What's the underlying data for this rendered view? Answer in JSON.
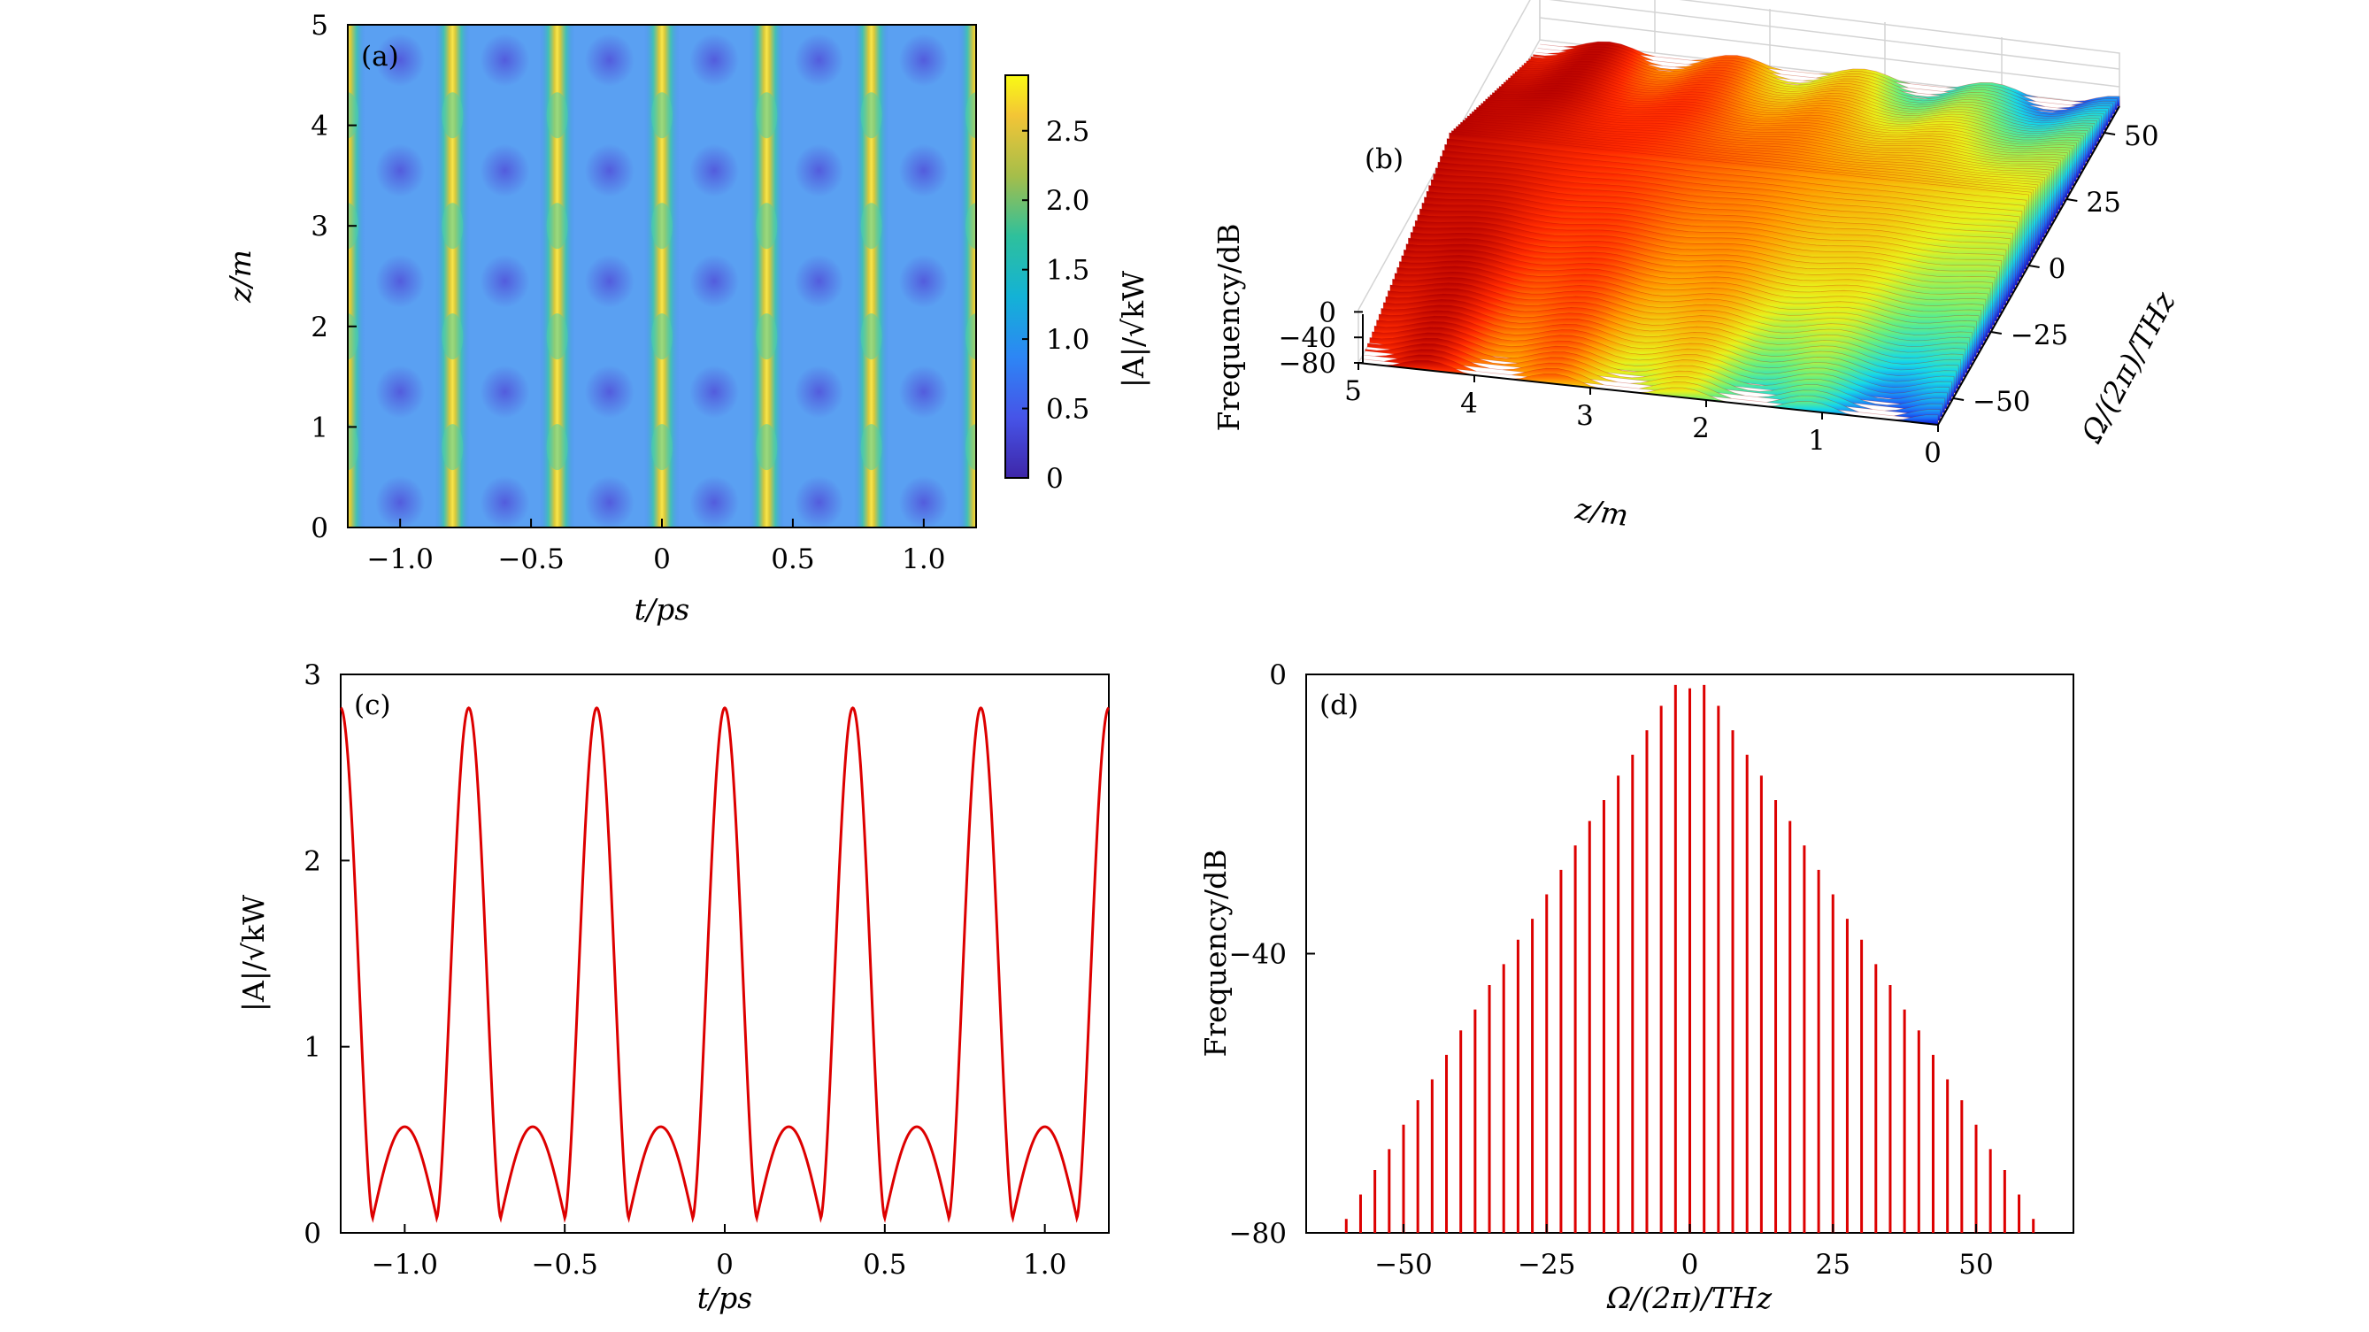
{
  "colors": {
    "line": "#dd0000",
    "axis": "#000000",
    "bg": "#ffffff"
  },
  "chart_data": [
    {
      "panel": "(a)",
      "type": "heatmap",
      "title": "",
      "xlabel": "t/ps",
      "ylabel": "z/m",
      "xlim": [
        -1.2,
        1.2
      ],
      "ylim": [
        0,
        5
      ],
      "x_ticks": [
        "−1.0",
        "−0.5",
        "0",
        "0.5",
        "1.0"
      ],
      "x_tick_values": [
        -1.0,
        -0.5,
        0,
        0.5,
        1.0
      ],
      "y_ticks": [
        "0",
        "1",
        "2",
        "3",
        "4",
        "5"
      ],
      "y_tick_values": [
        0,
        1,
        2,
        3,
        4,
        5
      ],
      "colorbar_label": "|A|/√kW",
      "colorbar_range": [
        0,
        2.9
      ],
      "colorbar_ticks": [
        "0",
        "0.5",
        "1.0",
        "1.5",
        "2.0",
        "2.5"
      ],
      "colorbar_tick_values": [
        0,
        0.5,
        1.0,
        1.5,
        2.0,
        2.5
      ],
      "pulse_centers_ps": [
        -1.2,
        -0.8,
        -0.4,
        0,
        0.4,
        0.8,
        1.2
      ],
      "peak_amplitude": 2.82,
      "min_amplitude": 0.08,
      "z_period_m": 1.1
    },
    {
      "panel": "(b)",
      "type": "surface3d",
      "xlabel": "z/m",
      "ylabel": "Ω/(2π)/THz",
      "zlabel": "Frequency/dB",
      "x_ticks": [
        "5",
        "4",
        "3",
        "2",
        "1",
        "0"
      ],
      "x_tick_values": [
        5,
        4,
        3,
        2,
        1,
        0
      ],
      "y_ticks": [
        "50",
        "25",
        "0",
        "−25",
        "−50"
      ],
      "y_tick_values": [
        50,
        25,
        0,
        -25,
        -50
      ],
      "z_ticks": [
        "0",
        "−40",
        "−80"
      ],
      "z_tick_values": [
        0,
        -40,
        -80
      ],
      "xlim": [
        0,
        5
      ],
      "ylim": [
        -60,
        60
      ],
      "zlim": [
        -80,
        0
      ]
    },
    {
      "panel": "(c)",
      "type": "line",
      "xlabel": "t/ps",
      "ylabel": "|A|/√kW",
      "xlim": [
        -1.2,
        1.2
      ],
      "ylim": [
        0,
        3
      ],
      "x_ticks": [
        "−1.0",
        "−0.5",
        "0",
        "0.5",
        "1.0"
      ],
      "x_tick_values": [
        -1.0,
        -0.5,
        0,
        0.5,
        1.0
      ],
      "y_ticks": [
        "0",
        "1",
        "2",
        "3"
      ],
      "y_tick_values": [
        0,
        1,
        2,
        3
      ],
      "series": [
        {
          "name": "|A|",
          "period_ps": 0.4,
          "peaks": {
            "t": [
              -1.2,
              -0.8,
              -0.4,
              0,
              0.4,
              0.8,
              1.2
            ],
            "value": 2.82
          },
          "secondary_maxima": {
            "t": [
              -1.0,
              -0.6,
              -0.2,
              0.2,
              0.6,
              1.0
            ],
            "value": 0.57
          },
          "minima": {
            "t": [
              -1.1,
              -0.9,
              -0.7,
              -0.5,
              -0.3,
              -0.1,
              0.1,
              0.3,
              0.5,
              0.7,
              0.9,
              1.1
            ],
            "value": 0.08
          }
        }
      ]
    },
    {
      "panel": "(d)",
      "type": "bar",
      "xlabel": "Ω/(2π)/THz",
      "ylabel": "Frequency/dB",
      "xlim": [
        -67,
        67
      ],
      "ylim": [
        -80,
        0
      ],
      "x_ticks": [
        "−50",
        "−25",
        "0",
        "25",
        "50"
      ],
      "x_tick_values": [
        -50,
        -25,
        0,
        25,
        50
      ],
      "y_ticks": [
        "0",
        "−40",
        "−80"
      ],
      "y_tick_values": [
        0,
        -40,
        -80
      ],
      "x": [
        -60,
        -57.5,
        -55,
        -52.5,
        -50,
        -47.5,
        -45,
        -42.5,
        -40,
        -37.5,
        -35,
        -32.5,
        -30,
        -27.5,
        -25,
        -22.5,
        -20,
        -17.5,
        -15,
        -12.5,
        -10,
        -7.5,
        -5,
        -2.5,
        0,
        2.5,
        5,
        7.5,
        10,
        12.5,
        15,
        17.5,
        20,
        22.5,
        25,
        27.5,
        30,
        32.5,
        35,
        37.5,
        40,
        42.5,
        45,
        47.5,
        50,
        52.5,
        55,
        57.5,
        60
      ],
      "values": [
        -78,
        -74.5,
        -71,
        -68,
        -64.5,
        -61,
        -58,
        -54.5,
        -51,
        -48,
        -44.5,
        -41.5,
        -38,
        -35,
        -31.5,
        -28,
        -24.5,
        -21,
        -18,
        -14.5,
        -11.5,
        -8,
        -4.5,
        -1.5,
        -2,
        -1.5,
        -4.5,
        -8,
        -11.5,
        -14.5,
        -18,
        -21,
        -24.5,
        -28,
        -31.5,
        -35,
        -38,
        -41.5,
        -44.5,
        -48,
        -51,
        -54.5,
        -58,
        -61,
        -64.5,
        -68,
        -71,
        -74.5,
        -78
      ]
    }
  ]
}
